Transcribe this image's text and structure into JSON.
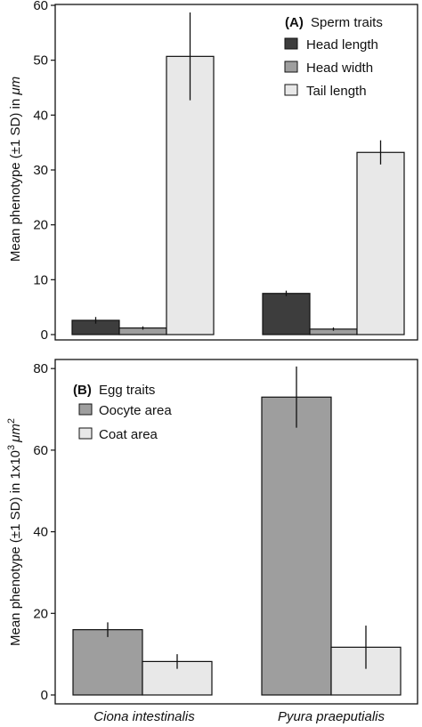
{
  "chart_data": [
    {
      "type": "bar",
      "panel": "A",
      "legend_title_letter": "(A)",
      "legend_title_text": "Sperm traits",
      "ylabel_prefix": "Mean phenotype (±1 SD) in ",
      "ylabel_unit": "μm",
      "ylim": [
        0,
        60
      ],
      "yticks": [
        0,
        10,
        20,
        30,
        40,
        50,
        60
      ],
      "categories": [
        "Ciona intestinalis",
        "Pyura praeputialis"
      ],
      "legend_position": "top-right",
      "series": [
        {
          "name": "Head length",
          "color": "#3d3d3d",
          "values": [
            2.6,
            7.5
          ],
          "sd": [
            0.6,
            0.5
          ]
        },
        {
          "name": "Head width",
          "color": "#9e9e9e",
          "values": [
            1.2,
            1.0
          ],
          "sd": [
            0.3,
            0.3
          ]
        },
        {
          "name": "Tail length",
          "color": "#e8e8e8",
          "values": [
            50.7,
            33.2
          ],
          "sd": [
            8.0,
            2.2
          ]
        }
      ]
    },
    {
      "type": "bar",
      "panel": "B",
      "legend_title_letter": "(B)",
      "legend_title_text": "Egg traits",
      "ylabel_prefix": "Mean phenotype (±1 SD) in 1x10",
      "ylabel_sup": "3",
      "ylabel_unit": "μm",
      "ylabel_sup2": "2",
      "ylim": [
        0,
        82
      ],
      "yticks": [
        0,
        20,
        40,
        60,
        80
      ],
      "categories": [
        "Ciona intestinalis",
        "Pyura praeputialis"
      ],
      "legend_position": "top-left",
      "series": [
        {
          "name": "Oocyte area",
          "color": "#9e9e9e",
          "values": [
            16.0,
            73.0
          ],
          "sd": [
            1.8,
            7.5
          ]
        },
        {
          "name": "Coat area",
          "color": "#e8e8e8",
          "values": [
            8.2,
            11.7
          ],
          "sd": [
            1.8,
            5.3
          ]
        }
      ]
    }
  ]
}
